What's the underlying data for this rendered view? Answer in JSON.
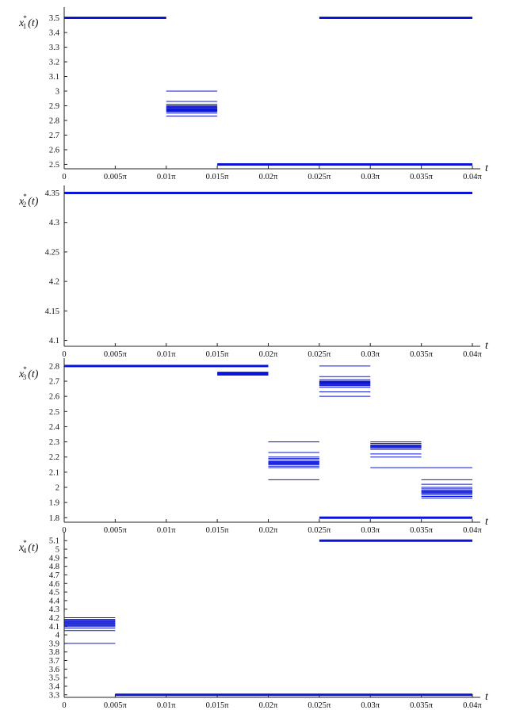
{
  "chart_data": [
    {
      "type": "line",
      "ylabel": {
        "var": "x",
        "sub": "1",
        "sup": "*",
        "arg": "(t)"
      },
      "xlabel": "t",
      "xlim": [
        0,
        0.04
      ],
      "ylim": [
        2.47,
        3.53
      ],
      "yticks": [
        2.5,
        2.6,
        2.7,
        2.8,
        2.9,
        3,
        3.1,
        3.2,
        3.3,
        3.4,
        3.5
      ],
      "ytick_labels": [
        "2.5",
        "2.6",
        "2.7",
        "2.8",
        "2.9",
        "3",
        "3.1",
        "3.2",
        "3.3",
        "3.4",
        "3.5"
      ],
      "xticks": [
        0,
        0.005,
        0.01,
        0.015,
        0.02,
        0.025,
        0.03,
        0.035,
        0.04
      ],
      "xtick_labels": [
        "0",
        "0.005π",
        "0.01π",
        "0.015π",
        "0.02π",
        "0.025π",
        "0.03π",
        "0.035π",
        "0.04π"
      ],
      "segments": [
        {
          "x0": 0,
          "x1": 0.01,
          "y": [
            3.5
          ],
          "thick": true
        },
        {
          "x0": 0.01,
          "x1": 0.015,
          "y": [
            3.0,
            2.93,
            2.91,
            2.9,
            2.895,
            2.89,
            2.885,
            2.88,
            2.875,
            2.87,
            2.865,
            2.86,
            2.85,
            2.83
          ]
        },
        {
          "x0": 0.015,
          "x1": 0.04,
          "y": [
            2.5
          ],
          "thick": true
        },
        {
          "x0": 0.025,
          "x1": 0.04,
          "y": [
            3.5
          ],
          "thick": true
        }
      ]
    },
    {
      "type": "line",
      "ylabel": {
        "var": "x",
        "sub": "2",
        "sup": "*",
        "arg": "(t)"
      },
      "xlabel": "t",
      "xlim": [
        0,
        0.04
      ],
      "ylim": [
        4.09,
        4.352
      ],
      "yticks": [
        4.1,
        4.15,
        4.2,
        4.25,
        4.3,
        4.35
      ],
      "ytick_labels": [
        "4.1",
        "4.15",
        "4.2",
        "4.25",
        "4.3",
        "4.35"
      ],
      "xticks": [
        0,
        0.005,
        0.01,
        0.015,
        0.02,
        0.025,
        0.03,
        0.035,
        0.04
      ],
      "xtick_labels": [
        "0",
        "0.005π",
        "0.01π",
        "0.015π",
        "0.02π",
        "0.025π",
        "0.03π",
        "0.035π",
        "0.04π"
      ],
      "segments": [
        {
          "x0": 0,
          "x1": 0.04,
          "y": [
            4.35
          ],
          "thick": true
        }
      ]
    },
    {
      "type": "line",
      "ylabel": {
        "var": "x",
        "sub": "3",
        "sup": "*",
        "arg": "(t)"
      },
      "xlabel": "t",
      "xlim": [
        0,
        0.04
      ],
      "ylim": [
        1.77,
        2.81
      ],
      "yticks": [
        1.8,
        1.9,
        2,
        2.1,
        2.2,
        2.3,
        2.4,
        2.5,
        2.6,
        2.7,
        2.8
      ],
      "ytick_labels": [
        "1.8",
        "1.9",
        "2",
        "2.1",
        "2.2",
        "2.3",
        "2.4",
        "2.5",
        "2.6",
        "2.7",
        "2.8"
      ],
      "xticks": [
        0,
        0.005,
        0.01,
        0.015,
        0.02,
        0.025,
        0.03,
        0.035,
        0.04
      ],
      "xtick_labels": [
        "0",
        "0.005π",
        "0.01π",
        "0.015π",
        "0.02π",
        "0.025π",
        "0.03π",
        "0.035π",
        "0.04π"
      ],
      "segments": [
        {
          "x0": 0,
          "x1": 0.02,
          "y": [
            2.8
          ],
          "thick": true
        },
        {
          "x0": 0.015,
          "x1": 0.02,
          "y": [
            2.76,
            2.755,
            2.75,
            2.745,
            2.74
          ]
        },
        {
          "x0": 0.02,
          "x1": 0.025,
          "y": [
            2.3,
            2.23,
            2.2,
            2.19,
            2.18,
            2.17,
            2.165,
            2.16,
            2.155,
            2.15,
            2.14,
            2.13,
            2.05
          ]
        },
        {
          "x0": 0.025,
          "x1": 0.03,
          "y": [
            2.8,
            2.73,
            2.71,
            2.7,
            2.695,
            2.69,
            2.685,
            2.68,
            2.675,
            2.67,
            2.66,
            2.63,
            2.6
          ]
        },
        {
          "x0": 0.03,
          "x1": 0.035,
          "y": [
            2.3,
            2.29,
            2.28,
            2.275,
            2.27,
            2.265,
            2.26,
            2.25,
            2.22,
            2.2,
            2.13
          ]
        },
        {
          "x0": 0.035,
          "x1": 0.04,
          "y": [
            2.13,
            2.05,
            2.02,
            2.0,
            1.99,
            1.98,
            1.975,
            1.97,
            1.965,
            1.96,
            1.95,
            1.94,
            1.93
          ]
        },
        {
          "x0": 0.025,
          "x1": 0.04,
          "y": [
            1.8
          ],
          "thick": true
        }
      ]
    },
    {
      "type": "line",
      "ylabel": {
        "var": "x",
        "sub": "4",
        "sup": "*",
        "arg": "(t)"
      },
      "xlabel": "t",
      "xlim": [
        0,
        0.04
      ],
      "ylim": [
        3.27,
        5.13
      ],
      "yticks": [
        3.3,
        3.4,
        3.5,
        3.6,
        3.7,
        3.8,
        3.9,
        4,
        4.1,
        4.2,
        4.3,
        4.4,
        4.5,
        4.6,
        4.7,
        4.8,
        4.9,
        5,
        5.1
      ],
      "ytick_labels": [
        "3.3",
        "3.4",
        "3.5",
        "3.6",
        "3.7",
        "3.8",
        "3.9",
        "4",
        "4.1",
        "4.2",
        "4.3",
        "4.4",
        "4.5",
        "4.6",
        "4.7",
        "4.8",
        "4.9",
        "5",
        "5.1"
      ],
      "xticks": [
        0,
        0.005,
        0.01,
        0.015,
        0.02,
        0.025,
        0.03,
        0.035,
        0.04
      ],
      "xtick_labels": [
        "0",
        "0.005π",
        "0.01π",
        "0.015π",
        "0.02π",
        "0.025π",
        "0.03π",
        "0.035π",
        "0.04π"
      ],
      "segments": [
        {
          "x0": 0,
          "x1": 0.005,
          "y": [
            4.2,
            4.18,
            4.17,
            4.16,
            4.15,
            4.14,
            4.13,
            4.12,
            4.11,
            4.1,
            4.08,
            4.05,
            3.9
          ]
        },
        {
          "x0": 0.005,
          "x1": 0.04,
          "y": [
            3.3
          ],
          "thick": true
        },
        {
          "x0": 0.025,
          "x1": 0.04,
          "y": [
            5.1
          ],
          "thick": true
        }
      ]
    }
  ],
  "colors": {
    "series": "#0a14d6",
    "axis": "#222222"
  }
}
